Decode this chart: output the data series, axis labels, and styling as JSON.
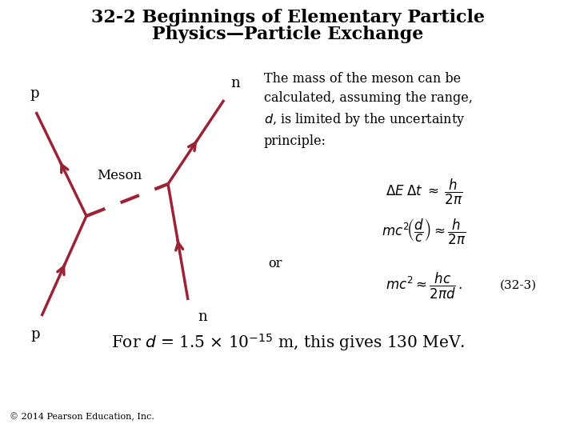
{
  "title_line1": "32-2 Beginnings of Elementary Particle",
  "title_line2": "Physics—Particle Exchange",
  "title_fontsize": 16,
  "bg_color": "#ffffff",
  "text_color": "#000000",
  "diagram_color": "#9b2335",
  "label_p_top": "p",
  "label_n_top": "n",
  "label_p_bottom": "p",
  "label_n_bottom": "n",
  "label_meson": "Meson",
  "eq_label": "(32-3)",
  "or_text": "or",
  "copyright": "© 2014 Pearson Education, Inc."
}
